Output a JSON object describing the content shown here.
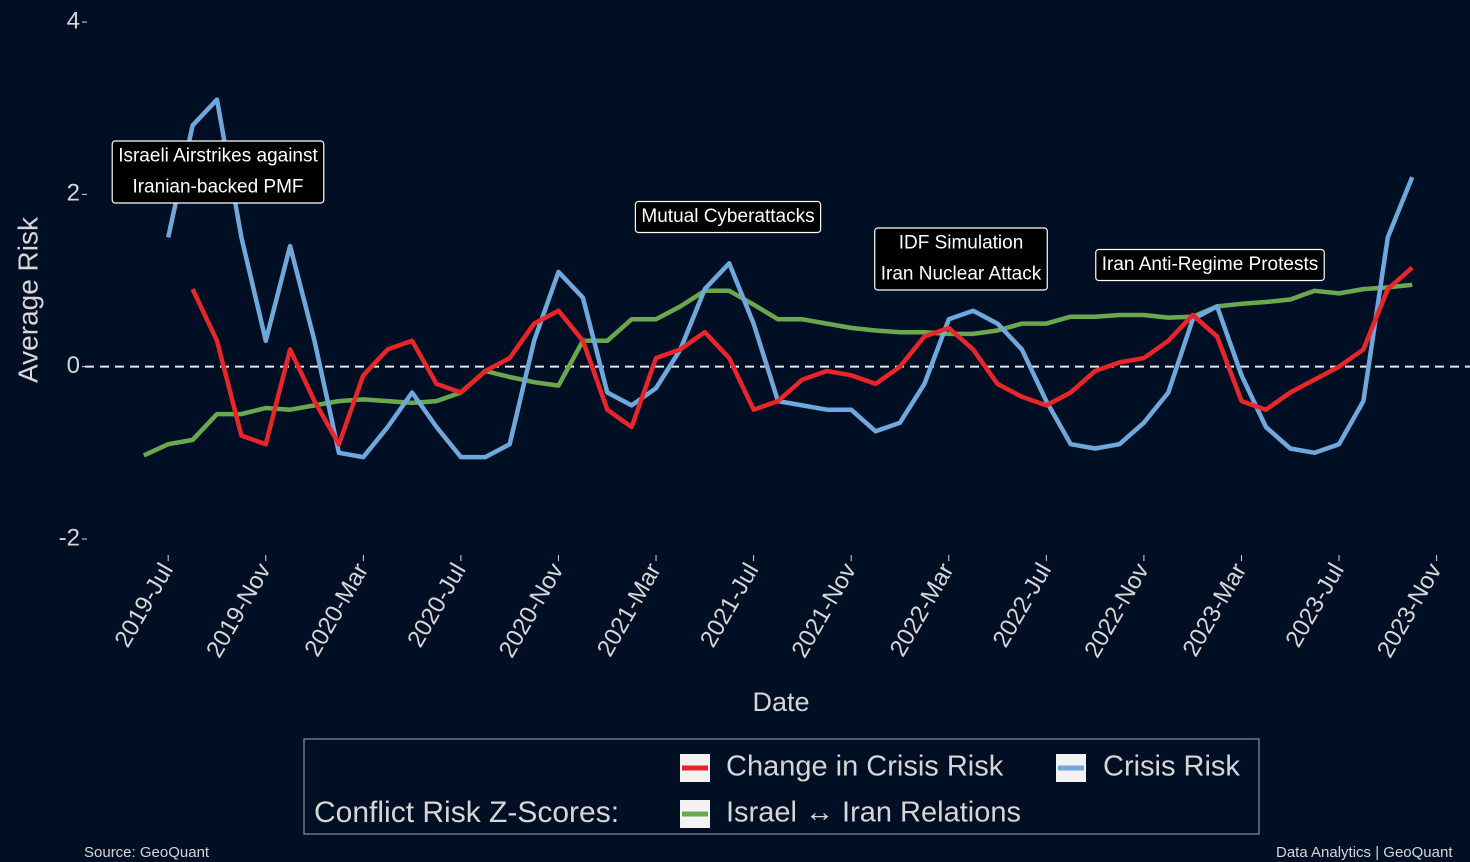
{
  "chart_data": {
    "type": "line",
    "ylabel": "Average Risk",
    "xlabel": "Date",
    "source": "Source: GeoQuant",
    "credit": "Data Analytics | GeoQuant",
    "legend_title": "Conflict Risk Z-Scores:",
    "hline": 0,
    "x": [
      "2019-06",
      "2019-07",
      "2019-08",
      "2019-09",
      "2019-10",
      "2019-11",
      "2019-12",
      "2020-01",
      "2020-02",
      "2020-03",
      "2020-04",
      "2020-05",
      "2020-06",
      "2020-07",
      "2020-08",
      "2020-09",
      "2020-10",
      "2020-11",
      "2020-12",
      "2021-01",
      "2021-02",
      "2021-03",
      "2021-04",
      "2021-05",
      "2021-06",
      "2021-07",
      "2021-08",
      "2021-09",
      "2021-10",
      "2021-11",
      "2021-12",
      "2022-01",
      "2022-02",
      "2022-03",
      "2022-04",
      "2022-05",
      "2022-06",
      "2022-07",
      "2022-08",
      "2022-09",
      "2022-10",
      "2022-11",
      "2022-12",
      "2023-01",
      "2023-02",
      "2023-03",
      "2023-04",
      "2023-05",
      "2023-06",
      "2023-07",
      "2023-08",
      "2023-09",
      "2023-10"
    ],
    "series": [
      {
        "name": "Israel ↔ Iran Relations",
        "color": "#6aa84f",
        "values": [
          -1.03,
          -0.9,
          -0.85,
          -0.55,
          -0.55,
          -0.48,
          -0.5,
          -0.45,
          -0.4,
          -0.38,
          -0.4,
          -0.42,
          -0.4,
          -0.3,
          -0.05,
          -0.12,
          -0.18,
          -0.22,
          0.3,
          0.3,
          0.55,
          0.55,
          0.7,
          0.88,
          0.88,
          0.72,
          0.55,
          0.55,
          0.5,
          0.45,
          0.42,
          0.4,
          0.4,
          0.38,
          0.38,
          0.42,
          0.5,
          0.5,
          0.58,
          0.58,
          0.6,
          0.6,
          0.57,
          0.58,
          0.7,
          0.73,
          0.75,
          0.78,
          0.88,
          0.85,
          0.9,
          0.92,
          0.95
        ]
      },
      {
        "name": "Crisis Risk",
        "color": "#6fa8dc",
        "values": [
          null,
          1.5,
          2.8,
          3.1,
          1.5,
          0.3,
          1.4,
          0.3,
          -1.0,
          -1.05,
          -0.7,
          -0.3,
          -0.7,
          -1.05,
          -1.05,
          -0.9,
          0.3,
          1.1,
          0.8,
          -0.3,
          -0.45,
          -0.25,
          0.2,
          0.9,
          1.2,
          0.5,
          -0.4,
          -0.45,
          -0.5,
          -0.5,
          -0.75,
          -0.65,
          -0.2,
          0.55,
          0.65,
          0.5,
          0.2,
          -0.4,
          -0.9,
          -0.95,
          -0.9,
          -0.65,
          -0.3,
          0.55,
          0.7,
          -0.1,
          -0.7,
          -0.95,
          -1.0,
          -0.9,
          -0.4,
          1.5,
          2.2
        ]
      },
      {
        "name": "Change in Crisis Risk",
        "color": "#e8262a",
        "values": [
          null,
          null,
          0.9,
          0.3,
          -0.8,
          -0.9,
          0.2,
          -0.4,
          -0.9,
          -0.1,
          0.2,
          0.3,
          -0.2,
          -0.3,
          -0.05,
          0.1,
          0.5,
          0.65,
          0.3,
          -0.5,
          -0.7,
          0.1,
          0.2,
          0.4,
          0.1,
          -0.5,
          -0.4,
          -0.15,
          -0.05,
          -0.1,
          -0.2,
          0.0,
          0.35,
          0.45,
          0.2,
          -0.2,
          -0.35,
          -0.45,
          -0.3,
          -0.05,
          0.05,
          0.1,
          0.3,
          0.6,
          0.35,
          -0.4,
          -0.5,
          -0.3,
          -0.15,
          0.0,
          0.2,
          0.9,
          1.15
        ]
      }
    ],
    "legend_order": [
      "Change in Crisis Risk",
      "Crisis Risk",
      "Israel ↔ Iran Relations"
    ],
    "annotations": [
      {
        "lines": [
          "Israeli Airstrikes against",
          "Iranian-backed PMF"
        ]
      },
      {
        "lines": [
          "Mutual Cyberattacks"
        ]
      },
      {
        "lines": [
          "IDF Simulation",
          "Iran Nuclear Attack"
        ]
      },
      {
        "lines": [
          "Iran Anti-Regime Protests"
        ]
      }
    ],
    "xlim": [
      "2019-04",
      "2023-12"
    ],
    "xticks": [
      {
        "value": "2019-07",
        "label": "2019-Jul"
      },
      {
        "value": "2019-11",
        "label": "2019-Nov"
      },
      {
        "value": "2020-03",
        "label": "2020-Mar"
      },
      {
        "value": "2020-07",
        "label": "2020-Jul"
      },
      {
        "value": "2020-11",
        "label": "2020-Nov"
      },
      {
        "value": "2021-03",
        "label": "2021-Mar"
      },
      {
        "value": "2021-07",
        "label": "2021-Jul"
      },
      {
        "value": "2021-11",
        "label": "2021-Nov"
      },
      {
        "value": "2022-03",
        "label": "2022-Mar"
      },
      {
        "value": "2022-07",
        "label": "2022-Jul"
      },
      {
        "value": "2022-11",
        "label": "2022-Nov"
      },
      {
        "value": "2023-03",
        "label": "2023-Mar"
      },
      {
        "value": "2023-07",
        "label": "2023-Jul"
      },
      {
        "value": "2023-11",
        "label": "2023-Nov"
      }
    ],
    "ylim": [
      -2.1,
      4.2
    ],
    "yticks": [
      -2,
      0,
      2,
      4
    ]
  }
}
